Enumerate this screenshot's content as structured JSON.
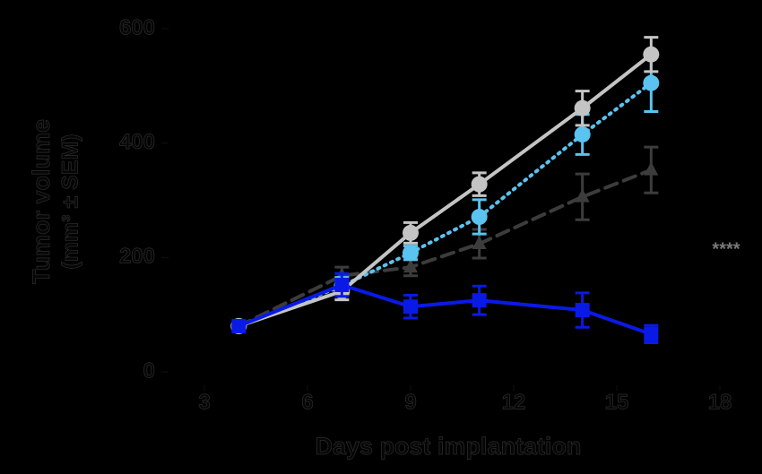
{
  "chart_data": {
    "type": "line",
    "x": [
      4,
      7,
      9,
      11,
      14,
      16
    ],
    "xlim": [
      3,
      18
    ],
    "xticks": [
      3,
      6,
      9,
      12,
      15,
      18
    ],
    "ylim": [
      0,
      600
    ],
    "yticks": [
      0,
      200,
      400,
      600
    ],
    "xlabel": "Days post implantation",
    "ylabel": [
      "Tumor volume",
      "(mm³ ± SEM)"
    ],
    "annotation": "****",
    "background": "#000000",
    "series": [
      {
        "color": "#3c3c3c",
        "dash": "dashed",
        "marker": "triangle",
        "values": [
          80,
          168,
          183,
          224,
          306,
          353
        ],
        "errors": [
          0,
          15,
          15,
          25,
          40,
          40
        ]
      },
      {
        "color": "#5bc3f0",
        "dash": "dotted",
        "marker": "circle",
        "values": [
          80,
          150,
          208,
          271,
          415,
          505
        ],
        "errors": [
          0,
          15,
          12,
          30,
          35,
          50
        ]
      },
      {
        "color": "#c4c4c4",
        "dash": "solid",
        "marker": "circle",
        "values": [
          80,
          141,
          243,
          328,
          461,
          555
        ],
        "errors": [
          0,
          15,
          18,
          20,
          30,
          30
        ]
      },
      {
        "color": "#0a1ae6",
        "dash": "solid",
        "marker": "square",
        "values": [
          80,
          152,
          114,
          125,
          108,
          66
        ],
        "errors": [
          0,
          20,
          20,
          25,
          30,
          15
        ]
      }
    ]
  }
}
